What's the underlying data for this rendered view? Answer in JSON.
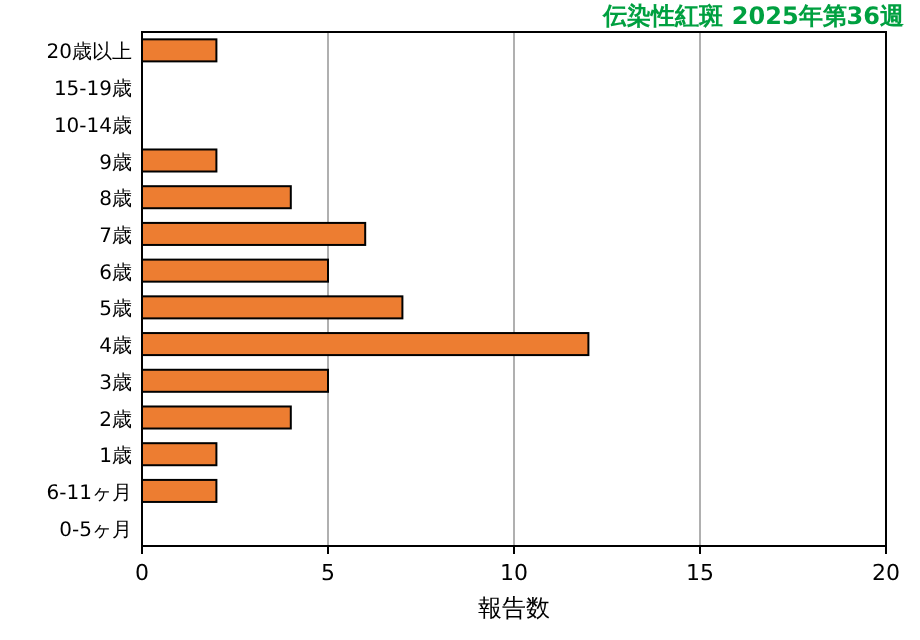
{
  "chart_data": {
    "type": "bar",
    "orientation": "horizontal",
    "title": "伝染性紅斑 2025年第36週",
    "xlabel": "報告数",
    "categories": [
      "20歳以上",
      "15-19歳",
      "10-14歳",
      "9歳",
      "8歳",
      "7歳",
      "6歳",
      "5歳",
      "4歳",
      "3歳",
      "2歳",
      "1歳",
      "6-11ヶ月",
      "0-5ヶ月"
    ],
    "values": [
      2,
      0,
      0,
      2,
      4,
      6,
      5,
      7,
      12,
      5,
      4,
      2,
      2,
      0
    ],
    "color": "#ed7d31",
    "xlim": [
      0,
      20
    ],
    "xticks": [
      0,
      5,
      10,
      15,
      20
    ],
    "grid": "x"
  }
}
